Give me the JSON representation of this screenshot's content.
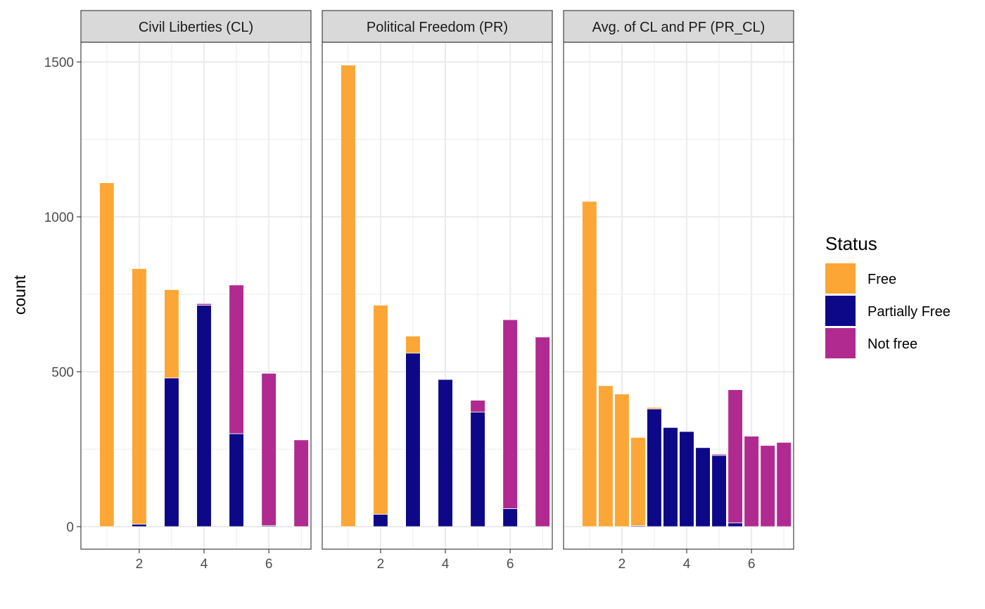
{
  "chart_data": {
    "type": "bar",
    "stacked": true,
    "ylabel": "count",
    "xlabel": "",
    "ylim": [
      0,
      1600
    ],
    "xlim": [
      0.2,
      7.3
    ],
    "y_ticks": [
      0,
      500,
      1000,
      1500
    ],
    "x_ticks": [
      2,
      4,
      6
    ],
    "grid": true,
    "legend": {
      "title": "Status",
      "position": "right",
      "entries": [
        {
          "name": "Free",
          "color": "#FCA636"
        },
        {
          "name": "Partially Free",
          "color": "#0D0887"
        },
        {
          "name": "Not free",
          "color": "#B12A90"
        }
      ]
    },
    "panels": [
      {
        "title": "Civil Liberties (CL)",
        "bar_width": 0.45,
        "bars": [
          {
            "x": 1,
            "free": 1110,
            "partial": 0,
            "notfree": 0
          },
          {
            "x": 2,
            "free": 825,
            "partial": 8,
            "notfree": 0
          },
          {
            "x": 3,
            "free": 285,
            "partial": 480,
            "notfree": 0
          },
          {
            "x": 4,
            "free": 0,
            "partial": 715,
            "notfree": 5
          },
          {
            "x": 5,
            "free": 0,
            "partial": 300,
            "notfree": 480
          },
          {
            "x": 6,
            "free": 0,
            "partial": 3,
            "notfree": 492
          },
          {
            "x": 7,
            "free": 0,
            "partial": 0,
            "notfree": 280
          }
        ]
      },
      {
        "title": "Political Freedom (PR)",
        "bar_width": 0.45,
        "bars": [
          {
            "x": 1,
            "free": 1490,
            "partial": 0,
            "notfree": 0
          },
          {
            "x": 2,
            "free": 675,
            "partial": 40,
            "notfree": 0
          },
          {
            "x": 3,
            "free": 55,
            "partial": 560,
            "notfree": 0
          },
          {
            "x": 4,
            "free": 0,
            "partial": 475,
            "notfree": 0
          },
          {
            "x": 5,
            "free": 0,
            "partial": 370,
            "notfree": 38
          },
          {
            "x": 6,
            "free": 0,
            "partial": 58,
            "notfree": 610
          },
          {
            "x": 7,
            "free": 0,
            "partial": 0,
            "notfree": 612
          }
        ]
      },
      {
        "title": "Avg. of CL and PF (PR_CL)",
        "bar_width": 0.45,
        "bars": [
          {
            "x": 1.0,
            "free": 1050,
            "partial": 0,
            "notfree": 0
          },
          {
            "x": 1.5,
            "free": 455,
            "partial": 0,
            "notfree": 0
          },
          {
            "x": 2.0,
            "free": 428,
            "partial": 0,
            "notfree": 0
          },
          {
            "x": 2.5,
            "free": 285,
            "partial": 3,
            "notfree": 0
          },
          {
            "x": 3.0,
            "free": 5,
            "partial": 380,
            "notfree": 0
          },
          {
            "x": 3.5,
            "free": 0,
            "partial": 320,
            "notfree": 0
          },
          {
            "x": 4.0,
            "free": 0,
            "partial": 307,
            "notfree": 0
          },
          {
            "x": 4.5,
            "free": 0,
            "partial": 255,
            "notfree": 0
          },
          {
            "x": 5.0,
            "free": 0,
            "partial": 230,
            "notfree": 4
          },
          {
            "x": 5.5,
            "free": 0,
            "partial": 12,
            "notfree": 430
          },
          {
            "x": 6.0,
            "free": 0,
            "partial": 0,
            "notfree": 292
          },
          {
            "x": 6.5,
            "free": 0,
            "partial": 0,
            "notfree": 262
          },
          {
            "x": 7.0,
            "free": 0,
            "partial": 0,
            "notfree": 272
          }
        ]
      }
    ]
  }
}
